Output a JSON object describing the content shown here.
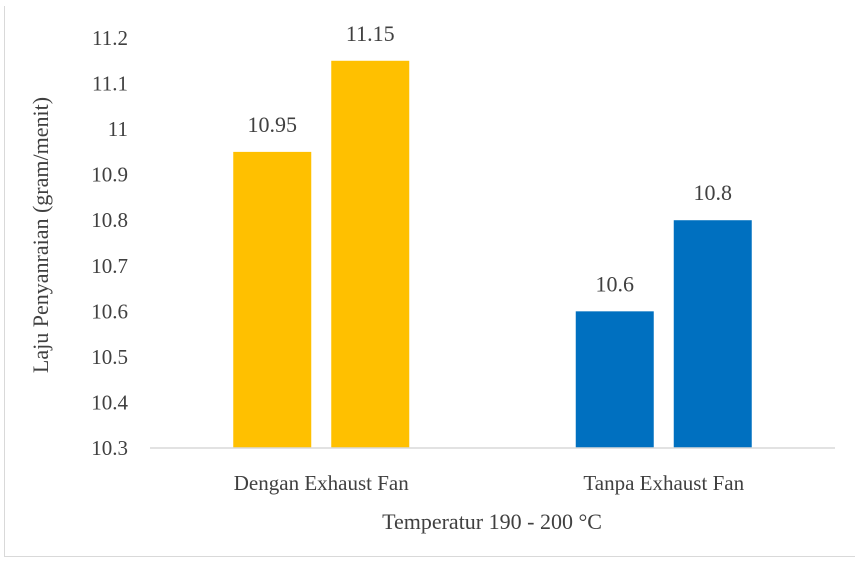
{
  "chart_data": {
    "type": "bar",
    "categories": [
      "Dengan Exhaust Fan",
      "Tanpa Exhaust Fan"
    ],
    "series": [
      {
        "values": [
          10.95,
          10.6
        ],
        "color": "#FFC000"
      },
      {
        "values": [
          11.15,
          10.8
        ],
        "color": "#FFC000"
      }
    ],
    "bar_colors": {
      "Dengan Exhaust Fan": "#FFC000",
      "Tanpa Exhaust Fan": "#0070C0"
    },
    "data_labels": [
      [
        "10.95",
        "11.15"
      ],
      [
        "10.6",
        "10.8"
      ]
    ],
    "xlabel": "Temperatur 190 - 200 °C",
    "ylabel": "Laju Penyanraian  (gram/menit)",
    "ylim": [
      10.3,
      11.2
    ],
    "yticks": [
      "10.3",
      "10.4",
      "10.5",
      "10.6",
      "10.7",
      "10.8",
      "10.9",
      "11",
      "11.1",
      "11.2"
    ],
    "grid": false,
    "legend": "none"
  }
}
